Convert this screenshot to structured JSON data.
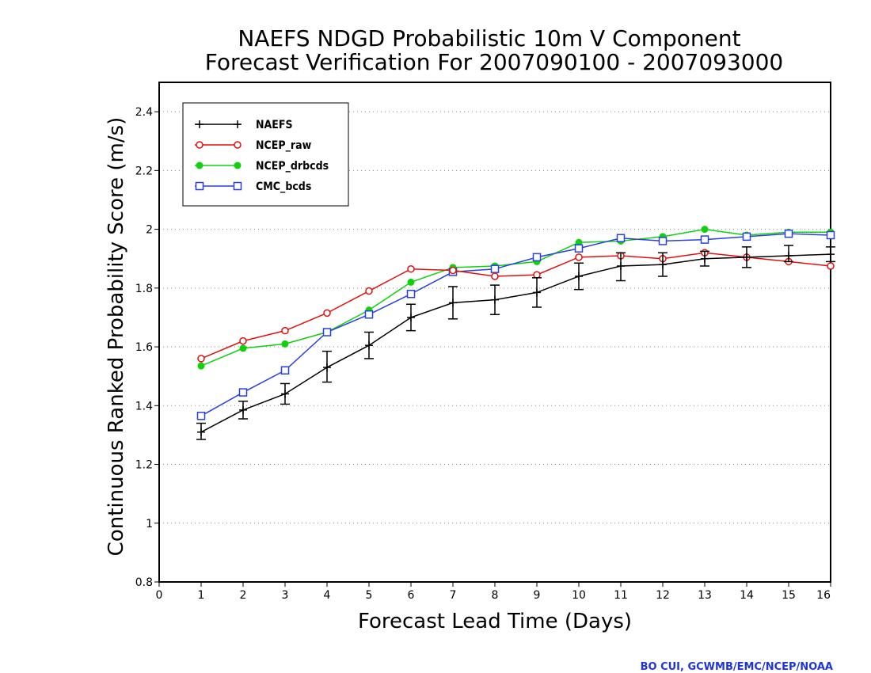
{
  "chart_data": {
    "type": "line",
    "title": [
      "NAEFS NDGD Probabilistic 10m V Component",
      "Forecast Verification For 2007090100 - 2007093000"
    ],
    "xlabel": "Forecast Lead Time (Days)",
    "ylabel": "Continuous Ranked Probability Score (m/s)",
    "xlim": [
      0,
      16
    ],
    "ylim": [
      0.8,
      2.5
    ],
    "x_ticks": [
      0,
      1,
      2,
      3,
      4,
      5,
      6,
      7,
      8,
      9,
      10,
      11,
      12,
      13,
      14,
      15,
      16
    ],
    "y_ticks": [
      0.8,
      1,
      1.2,
      1.4,
      1.6,
      1.8,
      2,
      2.2,
      2.4
    ],
    "y_tick_labels": [
      "0.8",
      "1",
      "1.2",
      "1.4",
      "1.6",
      "1.8",
      "2",
      "2.2",
      "2.4"
    ],
    "grid": "horizontal dotted",
    "legend_position": "top-left",
    "x": [
      1,
      2,
      3,
      4,
      5,
      6,
      7,
      8,
      9,
      10,
      11,
      12,
      13,
      14,
      15,
      16
    ],
    "series": [
      {
        "name": "NAEFS",
        "color": "#000000",
        "marker": "plus",
        "values": [
          1.31,
          1.385,
          1.44,
          1.53,
          1.605,
          1.7,
          1.75,
          1.76,
          1.785,
          1.84,
          1.875,
          1.88,
          1.9,
          1.905,
          1.91,
          1.915
        ],
        "error_low": [
          1.285,
          1.355,
          1.405,
          1.48,
          1.56,
          1.655,
          1.695,
          1.71,
          1.735,
          1.795,
          1.825,
          1.84,
          1.875,
          1.87,
          1.89,
          1.89
        ],
        "error_high": [
          1.34,
          1.415,
          1.475,
          1.585,
          1.65,
          1.745,
          1.805,
          1.81,
          1.835,
          1.885,
          1.92,
          1.92,
          1.925,
          1.94,
          1.945,
          1.94
        ]
      },
      {
        "name": "NCEP_raw",
        "color": "#e01010",
        "marker": "open-circle",
        "values": [
          1.56,
          1.62,
          1.655,
          1.715,
          1.79,
          1.865,
          1.86,
          1.84,
          1.845,
          1.905,
          1.91,
          1.9,
          1.92,
          1.905,
          1.89,
          1.875
        ]
      },
      {
        "name": "NCEP_drbcds",
        "color": "#10d010",
        "marker": "filled-circle",
        "values": [
          1.535,
          1.595,
          1.61,
          1.65,
          1.725,
          1.82,
          1.87,
          1.875,
          1.89,
          1.955,
          1.96,
          1.975,
          2.0,
          1.98,
          1.99,
          1.99
        ]
      },
      {
        "name": "CMC_bcds",
        "color": "#2a3fe0",
        "marker": "open-square",
        "values": [
          1.365,
          1.445,
          1.52,
          1.65,
          1.71,
          1.78,
          1.855,
          1.865,
          1.905,
          1.935,
          1.97,
          1.96,
          1.965,
          1.975,
          1.985,
          1.98
        ]
      }
    ]
  },
  "credit": "BO CUI, GCWMB/EMC/NCEP/NOAA"
}
